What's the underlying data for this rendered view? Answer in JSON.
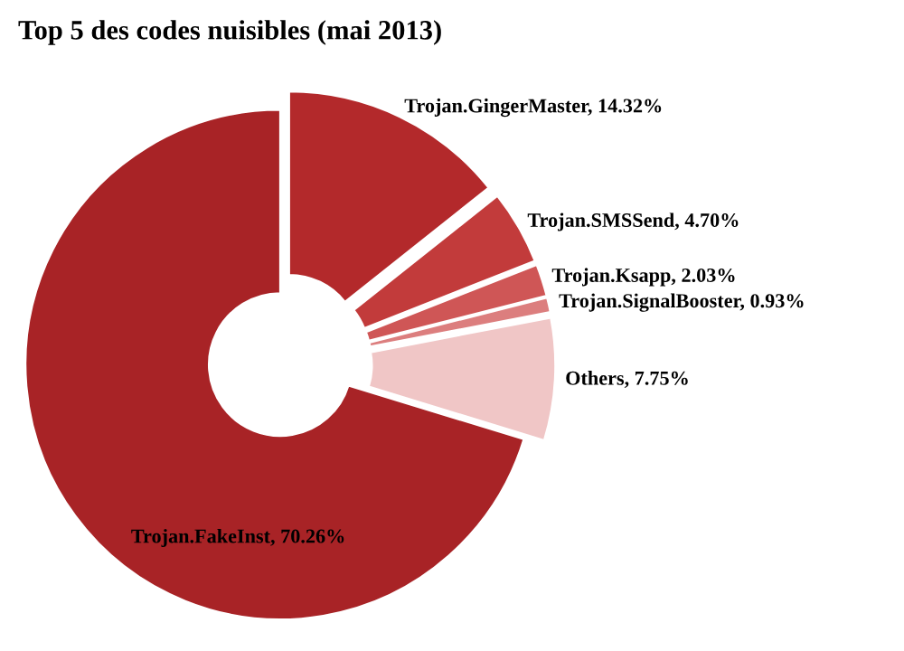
{
  "chart_data": {
    "type": "donut",
    "title": "Top 5 des codes nuisibles (mai 2013)",
    "categories": [
      "Trojan.GingerMaster",
      "Trojan.SMSSend",
      "Trojan.Ksapp",
      "Trojan.SignalBooster",
      "Others",
      "Trojan.FakeInst"
    ],
    "values": [
      14.32,
      4.7,
      2.03,
      0.93,
      7.75,
      70.26
    ],
    "value_labels": [
      "14.32%",
      "4.70%",
      "2.03%",
      "0.93%",
      "7.75%",
      "70.26%"
    ],
    "colors": [
      "#b3292b",
      "#c23b3b",
      "#cf5656",
      "#dc7e7e",
      "#f0c6c6",
      "#a82326"
    ]
  }
}
